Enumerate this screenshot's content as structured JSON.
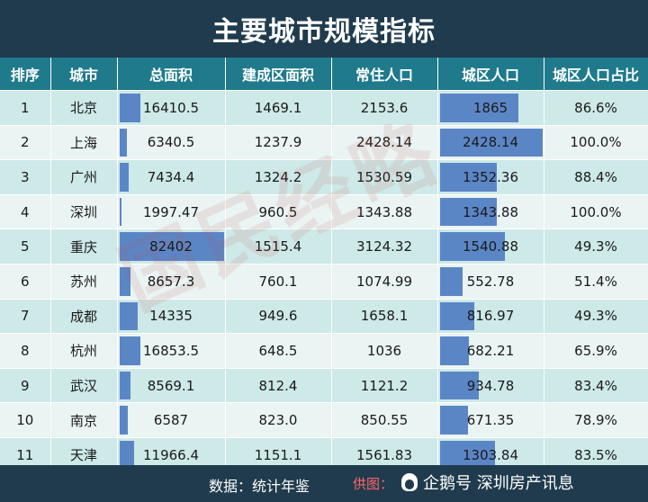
{
  "title": "主要城市规模指标",
  "headers": [
    "排序",
    "城市",
    "总面积",
    "建成区面积",
    "常住人口",
    "城区人口",
    "城区人口占比"
  ],
  "chart_data": {
    "type": "table",
    "title": "主要城市规模指标",
    "columns": [
      "排序",
      "城市",
      "总面积",
      "建成区面积",
      "常住人口",
      "城区人口",
      "城区人口占比"
    ],
    "rows": [
      [
        "1",
        "北京",
        "16410.5",
        "1469.1",
        "2153.6",
        "1865",
        "86.6%"
      ],
      [
        "2",
        "上海",
        "6340.5",
        "1237.9",
        "2428.14",
        "2428.14",
        "100.0%"
      ],
      [
        "3",
        "广州",
        "7434.4",
        "1324.2",
        "1530.59",
        "1352.36",
        "88.4%"
      ],
      [
        "4",
        "深圳",
        "1997.47",
        "960.5",
        "1343.88",
        "1343.88",
        "100.0%"
      ],
      [
        "5",
        "重庆",
        "82402",
        "1515.4",
        "3124.32",
        "1540.88",
        "49.3%"
      ],
      [
        "6",
        "苏州",
        "8657.3",
        "760.1",
        "1074.99",
        "552.78",
        "51.4%"
      ],
      [
        "7",
        "成都",
        "14335",
        "949.6",
        "1658.1",
        "816.97",
        "49.3%"
      ],
      [
        "8",
        "杭州",
        "16853.5",
        "648.5",
        "1036",
        "682.21",
        "65.9%"
      ],
      [
        "9",
        "武汉",
        "8569.1",
        "812.4",
        "1121.2",
        "934.78",
        "83.4%"
      ],
      [
        "10",
        "南京",
        "6587",
        "823.0",
        "850.55",
        "671.35",
        "78.9%"
      ],
      [
        "11",
        "天津",
        "11966.4",
        "1151.1",
        "1561.83",
        "1303.84",
        "83.5%"
      ]
    ],
    "data_bars": {
      "总面积": [
        16410.5,
        6340.5,
        7434.4,
        1997.47,
        82402,
        8657.3,
        14335,
        16853.5,
        8569.1,
        6587,
        11966.4
      ],
      "城区人口": [
        1865,
        2428.14,
        1352.36,
        1343.88,
        1540.88,
        552.78,
        816.97,
        682.21,
        934.78,
        671.35,
        1303.84
      ]
    },
    "bar_color": "#5b86c6"
  },
  "footer": {
    "source": "数据：统计年鉴",
    "credit": "供图：",
    "wechat": "企鹅号 深圳房产讯息"
  },
  "watermark": "国民经略"
}
